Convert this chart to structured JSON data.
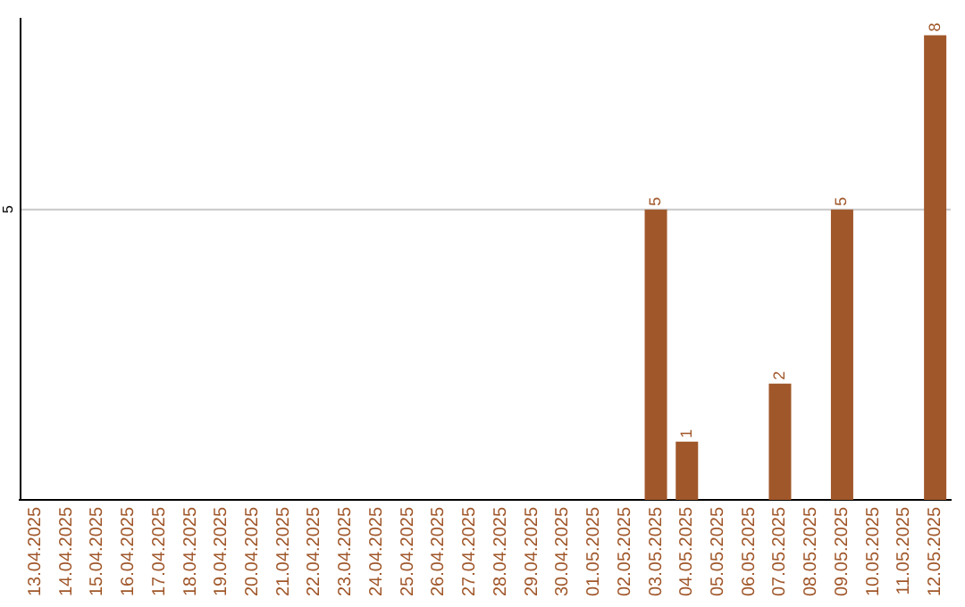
{
  "chart_data": {
    "type": "bar",
    "categories": [
      "13.04.2025",
      "14.04.2025",
      "15.04.2025",
      "16.04.2025",
      "17.04.2025",
      "18.04.2025",
      "19.04.2025",
      "20.04.2025",
      "21.04.2025",
      "22.04.2025",
      "23.04.2025",
      "24.04.2025",
      "25.04.2025",
      "26.04.2025",
      "27.04.2025",
      "28.04.2025",
      "29.04.2025",
      "30.04.2025",
      "01.05.2025",
      "02.05.2025",
      "03.05.2025",
      "04.05.2025",
      "05.05.2025",
      "06.05.2025",
      "07.05.2025",
      "08.05.2025",
      "09.05.2025",
      "10.05.2025",
      "11.05.2025",
      "12.05.2025"
    ],
    "values": [
      null,
      null,
      null,
      null,
      null,
      null,
      null,
      null,
      null,
      null,
      null,
      null,
      null,
      null,
      null,
      null,
      null,
      null,
      null,
      null,
      5,
      1,
      null,
      null,
      2,
      null,
      5,
      null,
      null,
      8
    ],
    "data_labels": true,
    "color": "#a0572a",
    "ylim": [
      0,
      8.3
    ],
    "ref_lines": [
      {
        "axis": "y",
        "value": 5,
        "label": "5",
        "color": "#c8c8c8"
      }
    ],
    "legend": false
  }
}
